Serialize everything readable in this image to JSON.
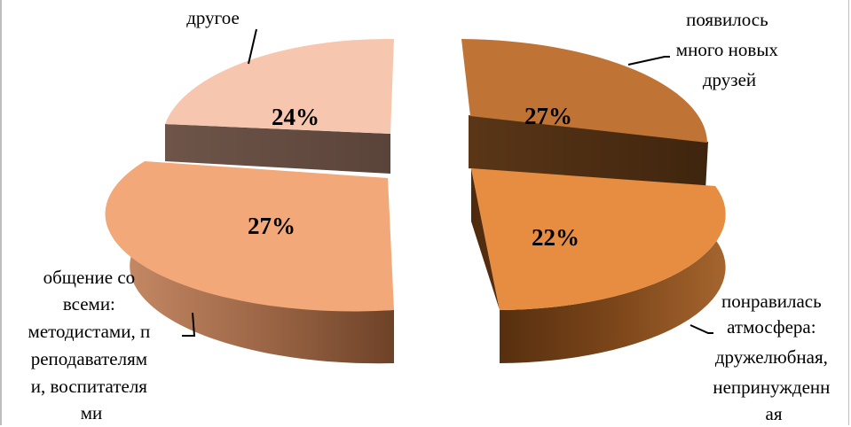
{
  "chart_data": {
    "type": "pie",
    "title": "",
    "slices": [
      {
        "label_lines": [
          "появилось",
          "много новых",
          "друзей"
        ],
        "value": 27,
        "value_label": "27%",
        "color_top": "#bf7335",
        "color_side": "#4c2e13"
      },
      {
        "label_lines": [
          "понравилась",
          "атмосфера:",
          "дружелюбная,",
          "непринужденн",
          "ая"
        ],
        "value": 22,
        "value_label": "22%",
        "color_top": "#e78d42",
        "color_side": "#6b3a12"
      },
      {
        "label_lines": [
          "общение со",
          "всеми:",
          "методистами, п",
          "реподавателям",
          "и, воспитателя",
          "ми"
        ],
        "value": 27,
        "value_label": "27%",
        "color_top": "#f2a878",
        "color_side": "#8a583b"
      },
      {
        "label_lines": [
          "другое"
        ],
        "value": 24,
        "value_label": "24%",
        "color_top": "#f7c6ae",
        "color_side": "#6a5147"
      }
    ],
    "three_d": true,
    "exploded": true,
    "legend": "none"
  }
}
